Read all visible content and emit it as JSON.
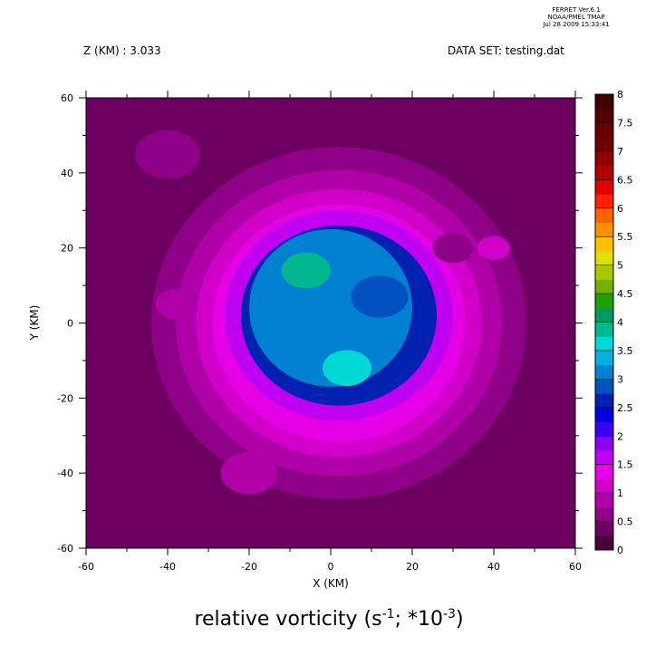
{
  "header": {
    "ferret_lines": [
      "FERRET  Ver.6.1",
      "NOAA/PMEL TMAP",
      "Jul 28 2009 15:33:41"
    ],
    "z_label": "Z (KM) : 3.033",
    "dataset_label": "DATA SET: testing.dat"
  },
  "chart_data": {
    "type": "heatmap",
    "title_main": "relative vorticity (s",
    "title_exp1": "-1",
    "title_mid": "; *10",
    "title_exp2": "-3",
    "title_end": ")",
    "xlabel": "X (KM)",
    "ylabel": "Y (KM)",
    "xlim": [
      -60,
      60
    ],
    "ylim": [
      -60,
      60
    ],
    "x_ticks": [
      -60,
      -40,
      -20,
      0,
      20,
      40,
      60
    ],
    "y_ticks": [
      -60,
      -40,
      -20,
      0,
      20,
      40,
      60
    ],
    "colorbar": {
      "levels": [
        0,
        0.5,
        1,
        1.5,
        2,
        2.5,
        3,
        3.5,
        4,
        4.5,
        5,
        5.5,
        6,
        6.5,
        7,
        7.5,
        8
      ],
      "labels": [
        "0",
        "0.5",
        "1",
        "1.5",
        "2",
        "2.5",
        "3",
        "3.5",
        "4",
        "4.5",
        "5",
        "5.5",
        "6",
        "6.5",
        "7",
        "7.5",
        "8"
      ],
      "colors": [
        "#4a003f",
        "#6b0060",
        "#8e0085",
        "#b000a8",
        "#d000c9",
        "#e600e6",
        "#c000f0",
        "#8a00f0",
        "#3a00f0",
        "#0000e0",
        "#0020b0",
        "#0050c0",
        "#0080d0",
        "#00b0e0",
        "#00d8d8",
        "#00b890",
        "#009a60",
        "#20a000",
        "#70b000",
        "#a8c800",
        "#e0e000",
        "#ffc000",
        "#ff9000",
        "#ff6000",
        "#ff2000",
        "#e00000",
        "#b00000",
        "#900000",
        "#700000",
        "#600000",
        "#500000",
        "#400000"
      ]
    },
    "field": {
      "background_level": 0.25,
      "features": [
        {
          "kind": "ring",
          "cx": 2,
          "cy": 2,
          "radius": 28,
          "width": 14,
          "level": 1.5
        },
        {
          "kind": "ring",
          "cx": 2,
          "cy": 2,
          "radius": 24,
          "width": 6,
          "level": 2.5
        },
        {
          "kind": "core",
          "cx": 0,
          "cy": 4,
          "radius": 20,
          "level": 3.2
        },
        {
          "kind": "blob",
          "cx": -6,
          "cy": 14,
          "radius": 6,
          "level": 3.8
        },
        {
          "kind": "blob",
          "cx": 12,
          "cy": 7,
          "radius": 7,
          "level": 2.8
        },
        {
          "kind": "blob",
          "cx": 4,
          "cy": -12,
          "radius": 6,
          "level": 3.6
        },
        {
          "kind": "blob",
          "cx": 30,
          "cy": 20,
          "radius": 5,
          "level": 0.6
        },
        {
          "kind": "blob",
          "cx": -40,
          "cy": 45,
          "radius": 8,
          "level": 0.6
        },
        {
          "kind": "blob",
          "cx": 40,
          "cy": 20,
          "radius": 4,
          "level": 1.2
        },
        {
          "kind": "blob",
          "cx": -38,
          "cy": 5,
          "radius": 5,
          "level": 0.9
        },
        {
          "kind": "blob",
          "cx": -20,
          "cy": -40,
          "radius": 7,
          "level": 0.8
        }
      ]
    }
  }
}
